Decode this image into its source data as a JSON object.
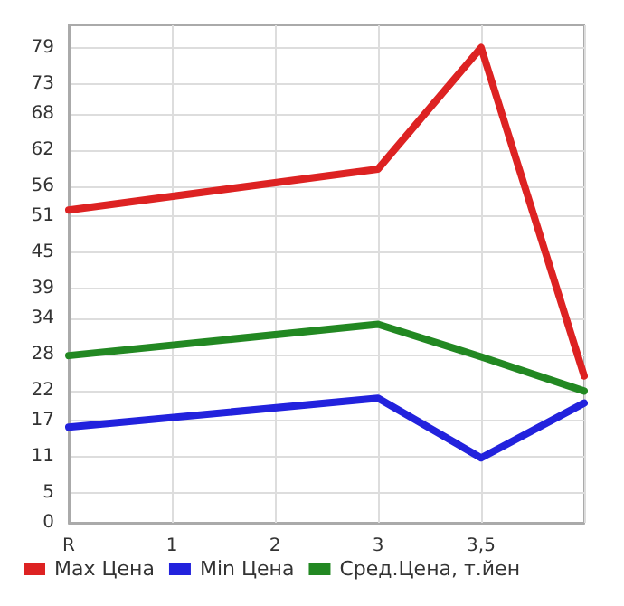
{
  "chart_data": {
    "type": "line",
    "categories": [
      "R",
      "1",
      "2",
      "3",
      "3,5",
      null
    ],
    "series": [
      {
        "name": "Max Цена",
        "color": "#dd2222",
        "values": [
          52,
          null,
          null,
          58.8,
          79,
          24.4
        ]
      },
      {
        "name": "Min Цена",
        "color": "#2222dd",
        "values": [
          15.9,
          null,
          null,
          20.7,
          10.8,
          19.9
        ]
      },
      {
        "name": "Сред.Цена, т.йен",
        "color": "#228822",
        "values": [
          27.8,
          null,
          null,
          33,
          27.6,
          21.9
        ]
      }
    ],
    "ylim": [
      0,
      82.7
    ],
    "yticks": [
      0,
      5,
      11,
      17,
      22,
      28,
      34,
      39,
      45,
      51,
      56,
      62,
      68,
      73,
      79
    ],
    "grid": true,
    "legend": "bottom",
    "marker": "none",
    "line_style": "solid"
  }
}
